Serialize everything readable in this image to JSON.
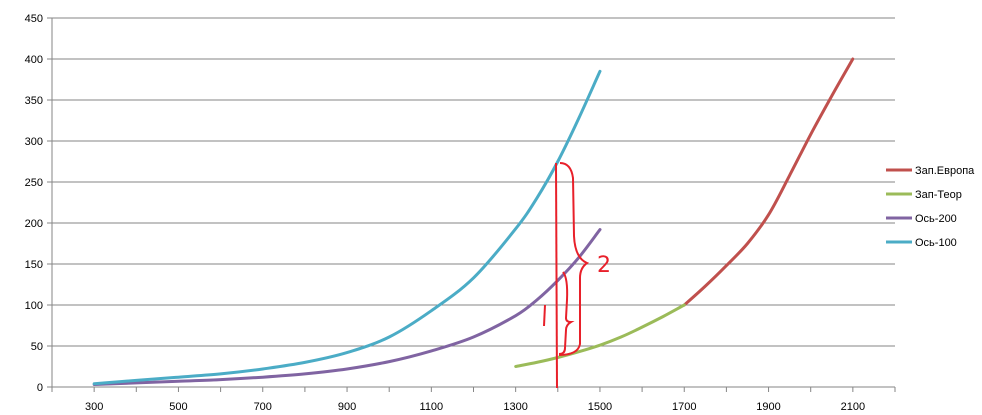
{
  "chart_data": {
    "type": "line",
    "title": "",
    "xlabel": "",
    "ylabel": "",
    "xlim": [
      200,
      2200
    ],
    "ylim": [
      0,
      450
    ],
    "x_ticks": [
      "300",
      "500",
      "700",
      "900",
      "1100",
      "1300",
      "1500",
      "1700",
      "1900",
      "2100"
    ],
    "y_ticks": [
      "0",
      "50",
      "100",
      "150",
      "200",
      "250",
      "300",
      "350",
      "400",
      "450"
    ],
    "grid": "horizontal",
    "legend_position": "right",
    "series": [
      {
        "name": "Зап.Европа",
        "color": "#c0504d",
        "points": [
          [
            1700,
            100
          ],
          [
            1750,
            123
          ],
          [
            1800,
            148
          ],
          [
            1850,
            175
          ],
          [
            1900,
            210
          ],
          [
            1950,
            258
          ],
          [
            2000,
            308
          ],
          [
            2050,
            355
          ],
          [
            2100,
            400
          ]
        ]
      },
      {
        "name": "Зап-Теор",
        "color": "#9bbb59",
        "points": [
          [
            1300,
            25
          ],
          [
            1350,
            30
          ],
          [
            1400,
            36
          ],
          [
            1450,
            43
          ],
          [
            1500,
            51
          ],
          [
            1550,
            61
          ],
          [
            1600,
            73
          ],
          [
            1650,
            86
          ],
          [
            1700,
            100
          ]
        ]
      },
      {
        "name": "Ось-200",
        "color": "#8064a2",
        "points": [
          [
            300,
            3
          ],
          [
            400,
            5
          ],
          [
            500,
            7
          ],
          [
            600,
            9
          ],
          [
            700,
            12
          ],
          [
            800,
            16
          ],
          [
            900,
            22
          ],
          [
            1000,
            31
          ],
          [
            1100,
            44
          ],
          [
            1200,
            61
          ],
          [
            1300,
            87
          ],
          [
            1350,
            106
          ],
          [
            1400,
            130
          ],
          [
            1450,
            158
          ],
          [
            1500,
            192
          ]
        ]
      },
      {
        "name": "Ось-100",
        "color": "#4bacc6",
        "points": [
          [
            300,
            4
          ],
          [
            400,
            8
          ],
          [
            500,
            12
          ],
          [
            600,
            16
          ],
          [
            700,
            22
          ],
          [
            800,
            30
          ],
          [
            900,
            42
          ],
          [
            1000,
            61
          ],
          [
            1100,
            93
          ],
          [
            1200,
            133
          ],
          [
            1300,
            193
          ],
          [
            1350,
            230
          ],
          [
            1400,
            275
          ],
          [
            1450,
            328
          ],
          [
            1500,
            385
          ]
        ]
      }
    ],
    "annotations": [
      "1",
      "2"
    ]
  }
}
